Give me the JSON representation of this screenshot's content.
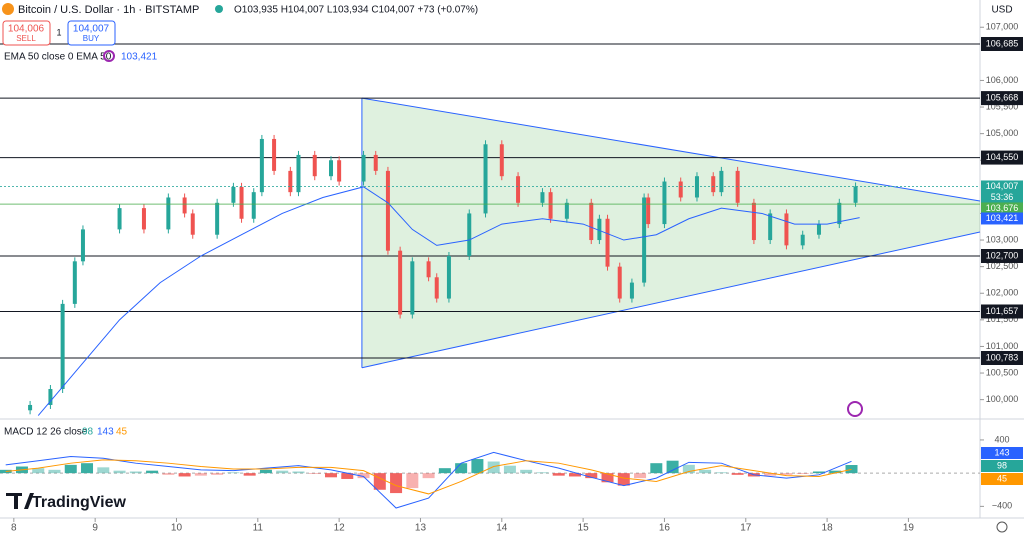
{
  "header": {
    "symbol": "Bitcoin / U.S. Dollar · 1h · BITSTAMP",
    "ohlc": "O103,935 H104,007 L103,934 C104,007 +73 (+0.07%)",
    "sell_price": "104,006",
    "sell": "SELL",
    "spread": "1",
    "buy_price": "104,007",
    "buy": "BUY",
    "ema_label": "EMA 50 close 0 EMA 50",
    "ema_value": "103,421",
    "macd_label": "MACD 12 26 close",
    "macd_values": [
      "98",
      "143",
      "45"
    ],
    "currency": "USD",
    "logo": "TradingView"
  },
  "chart_data": [
    {
      "type": "candlestick",
      "xlim": [
        7.83,
        19.88
      ],
      "ylim": [
        99655,
        107512
      ],
      "xticks": [
        8,
        9,
        10,
        11,
        12,
        13,
        14,
        15,
        16,
        17,
        18,
        19
      ],
      "yticks": [
        {
          "value": 107000,
          "label": "107,000"
        },
        {
          "value": 106000,
          "label": "106,000"
        },
        {
          "value": 105500,
          "label": "105,500"
        },
        {
          "value": 105000,
          "label": "105,000"
        },
        {
          "value": 104500,
          "label": "104,500"
        },
        {
          "value": 103500,
          "label": "103,500"
        },
        {
          "value": 103000,
          "label": "103,000"
        },
        {
          "value": 102500,
          "label": "102,500"
        },
        {
          "value": 102000,
          "label": "102,000"
        },
        {
          "value": 101500,
          "label": "101,500"
        },
        {
          "value": 101000,
          "label": "101,000"
        },
        {
          "value": 100500,
          "label": "100,500"
        },
        {
          "value": 100000,
          "label": "100,000"
        }
      ],
      "up_color": "#26a69a",
      "down_color": "#ef5350",
      "series": [
        {
          "name": "BTCUSD",
          "color": "#26a69a",
          "x": [
            7.85,
            8.2,
            8.45,
            8.6,
            8.75,
            8.85,
            9.3,
            9.6,
            9.9,
            10.1,
            10.2,
            10.5,
            10.7,
            10.8,
            10.95,
            11.05,
            11.2,
            11.4,
            11.5,
            11.7,
            11.9,
            12.0,
            12.3,
            12.45,
            12.6,
            12.75,
            12.9,
            13.1,
            13.2,
            13.35,
            13.6,
            13.8,
            14.0,
            14.2,
            14.5,
            14.6,
            14.8,
            15.1,
            15.2,
            15.3,
            15.45,
            15.6,
            15.75,
            15.8,
            16.0,
            16.2,
            16.4,
            16.6,
            16.7,
            16.9,
            17.1,
            17.3,
            17.5,
            17.7,
            17.9,
            18.15,
            18.35
          ],
          "values": [
            99800,
            99900,
            100200,
            101800,
            102600,
            103200,
            103600,
            103200,
            103800,
            103500,
            103100,
            103700,
            104000,
            103400,
            103900,
            104900,
            104300,
            103900,
            104600,
            104200,
            104500,
            104100,
            104600,
            104300,
            102800,
            101600,
            102600,
            102300,
            101900,
            102700,
            103500,
            104800,
            104200,
            103700,
            103900,
            103400,
            103700,
            103000,
            103400,
            102500,
            101900,
            102200,
            103800,
            103300,
            104100,
            103800,
            104200,
            103900,
            104300,
            103700,
            103000,
            103500,
            102900,
            103100,
            103300,
            103700,
            104007
          ]
        },
        {
          "name": "EMA 50",
          "color": "#2962ff",
          "x": [
            8.3,
            8.8,
            9.3,
            9.8,
            10.3,
            10.8,
            11.3,
            11.8,
            12.3,
            12.6,
            12.9,
            13.2,
            13.6,
            14.0,
            14.5,
            15.0,
            15.5,
            15.9,
            16.3,
            16.7,
            17.2,
            17.6,
            18.0,
            18.4
          ],
          "values": [
            99700,
            100600,
            101500,
            102200,
            102700,
            103100,
            103500,
            103800,
            104000,
            103700,
            103200,
            102900,
            103000,
            103300,
            103400,
            103300,
            103000,
            103100,
            103400,
            103600,
            103500,
            103300,
            103300,
            103421
          ]
        }
      ],
      "levels": [
        {
          "value": 106685,
          "label": "106,685"
        },
        {
          "value": 105668,
          "label": "105,668"
        },
        {
          "value": 104550,
          "label": "104,550"
        },
        {
          "value": 102700,
          "label": "102,700"
        },
        {
          "value": 101657,
          "label": "101,657"
        },
        {
          "value": 100783,
          "label": "100,783"
        }
      ],
      "triangle": {
        "x": [
          12.28,
          19.88,
          19.88,
          12.28
        ],
        "values": [
          105668,
          103734,
          103151,
          100600
        ],
        "color": "#2962ff"
      },
      "price_line": {
        "value": 104007,
        "label": "104,007",
        "countdown": "53:36",
        "color": "#26a69a"
      },
      "extra_line": {
        "value": 103676,
        "label": "103,676",
        "color": "#4caf50"
      },
      "ema_line": {
        "value": 103421,
        "label": "103,421",
        "color": "#2962ff"
      }
    },
    {
      "type": "macd",
      "xlim": [
        7.83,
        19.88
      ],
      "ylim": [
        -540,
        640
      ],
      "yticks": [
        400,
        {
          "value": -400,
          "label": "−400"
        }
      ],
      "histogram": {
        "name": "Histogram",
        "up_color": "#26a69a",
        "down_color": "#ef5350",
        "x": [
          7.9,
          8.1,
          8.3,
          8.5,
          8.7,
          8.9,
          9.1,
          9.3,
          9.5,
          9.7,
          9.9,
          10.1,
          10.3,
          10.5,
          10.7,
          10.9,
          11.1,
          11.3,
          11.5,
          11.7,
          11.9,
          12.1,
          12.3,
          12.5,
          12.7,
          12.9,
          13.1,
          13.3,
          13.5,
          13.7,
          13.9,
          14.1,
          14.3,
          14.5,
          14.7,
          14.9,
          15.1,
          15.3,
          15.5,
          15.7,
          15.9,
          16.1,
          16.3,
          16.5,
          16.7,
          16.9,
          17.1,
          17.3,
          17.5,
          17.7,
          17.9,
          18.1,
          18.3
        ],
        "values": [
          40,
          80,
          60,
          40,
          100,
          120,
          70,
          30,
          20,
          30,
          -20,
          -40,
          -30,
          -20,
          10,
          -30,
          40,
          30,
          20,
          -10,
          -50,
          -70,
          -60,
          -200,
          -240,
          -180,
          -60,
          60,
          120,
          170,
          140,
          90,
          40,
          10,
          -30,
          -40,
          -60,
          -110,
          -150,
          -60,
          120,
          150,
          100,
          40,
          10,
          -20,
          -40,
          -30,
          -20,
          -10,
          20,
          30,
          98
        ]
      },
      "series": [
        {
          "name": "MACD",
          "color": "#2962ff",
          "x": [
            7.9,
            8.3,
            8.7,
            9.1,
            9.5,
            9.9,
            10.3,
            10.7,
            11.1,
            11.5,
            11.9,
            12.3,
            12.7,
            13.1,
            13.5,
            13.9,
            14.3,
            14.7,
            15.1,
            15.5,
            15.9,
            16.3,
            16.7,
            17.1,
            17.5,
            17.9,
            18.3
          ],
          "values": [
            100,
            150,
            200,
            180,
            120,
            80,
            40,
            30,
            60,
            90,
            40,
            -40,
            -420,
            -300,
            120,
            250,
            150,
            60,
            -50,
            -150,
            -60,
            130,
            120,
            -20,
            -60,
            -20,
            143
          ]
        },
        {
          "name": "Signal",
          "color": "#ff9800",
          "x": [
            7.9,
            8.3,
            8.7,
            9.1,
            9.5,
            9.9,
            10.3,
            10.7,
            11.1,
            11.5,
            11.9,
            12.3,
            12.7,
            13.1,
            13.5,
            13.9,
            14.3,
            14.7,
            15.1,
            15.5,
            15.9,
            16.3,
            16.7,
            17.1,
            17.5,
            17.9,
            18.3
          ],
          "values": [
            20,
            60,
            120,
            160,
            150,
            120,
            80,
            50,
            50,
            70,
            70,
            30,
            -150,
            -250,
            -100,
            80,
            150,
            120,
            40,
            -60,
            -100,
            20,
            90,
            30,
            -30,
            -40,
            45
          ]
        }
      ]
    }
  ]
}
